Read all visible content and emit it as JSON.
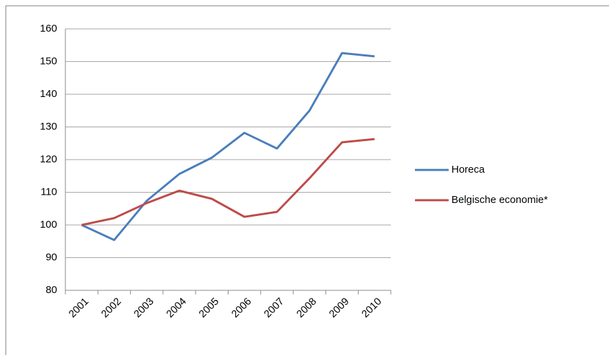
{
  "chart_data": {
    "type": "line",
    "categories": [
      "2001",
      "2002",
      "2003",
      "2004",
      "2005",
      "2006",
      "2007",
      "2008",
      "2009",
      "2010"
    ],
    "series": [
      {
        "name": "Horeca",
        "color": "#4a7ebb",
        "values": [
          100,
          95.4,
          107.4,
          115.6,
          120.6,
          128.2,
          123.4,
          135,
          152.6,
          151.6
        ]
      },
      {
        "name": "Belgische economie*",
        "color": "#be4b48",
        "values": [
          100,
          102.1,
          106.7,
          110.5,
          108,
          102.5,
          104,
          114.3,
          125.3,
          126.3
        ]
      }
    ],
    "ylim": [
      80,
      160
    ],
    "yticks": [
      80,
      90,
      100,
      110,
      120,
      130,
      140,
      150,
      160
    ],
    "grid": true,
    "legend": "right"
  }
}
